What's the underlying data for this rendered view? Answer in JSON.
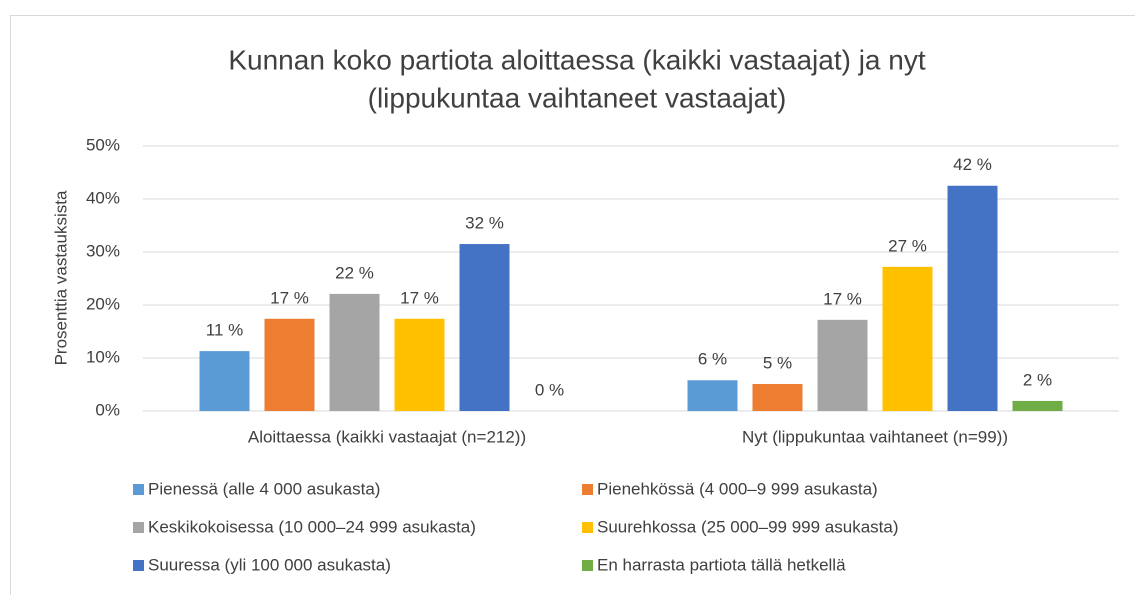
{
  "chart_data": {
    "type": "bar",
    "title": [
      "Kunnan koko partiota aloittaessa (kaikki vastaajat) ja nyt",
      "(lippukuntaa vaihtaneet vastaajat)"
    ],
    "y_label": "Prosenttia vastauksista",
    "categories": [
      "Aloittaessa (kaikki vastaajat (n=212))",
      "Nyt (lippukuntaa vaihtaneet (n=99))"
    ],
    "series": [
      {
        "name": "Pienessä (alle 4 000 asukasta)",
        "color": "#5b9bd5",
        "values": [
          11.3,
          5.8
        ],
        "value_labels": [
          "11 %",
          "6 %"
        ]
      },
      {
        "name": "Pienehkössä (4 000–9 999 asukasta)",
        "color": "#ed7d31",
        "values": [
          17.4,
          5.1
        ],
        "value_labels": [
          "17 %",
          "5 %"
        ]
      },
      {
        "name": "Keskikokoisessa (10 000–24 999 asukasta)",
        "color": "#a5a5a5",
        "values": [
          22.1,
          17.2
        ],
        "value_labels": [
          "22 %",
          "17 %"
        ]
      },
      {
        "name": "Suurehkossa (25 000–99 999 asukasta)",
        "color": "#ffc000",
        "values": [
          17.4,
          27.2
        ],
        "value_labels": [
          "17 %",
          "27 %"
        ]
      },
      {
        "name": "Suuressa (yli 100 000 asukasta)",
        "color": "#4472c4",
        "values": [
          31.5,
          42.5
        ],
        "value_labels": [
          "32 %",
          "42 %"
        ]
      },
      {
        "name": "En harrasta partiota tällä hetkellä",
        "color": "#70ad47",
        "values": [
          0,
          1.9
        ],
        "value_labels": [
          "0 %",
          "2 %"
        ]
      }
    ],
    "ylim": [
      0,
      50
    ],
    "yticks": [
      {
        "value": 0,
        "label": "0%"
      },
      {
        "value": 10,
        "label": "10%"
      },
      {
        "value": 20,
        "label": "20%"
      },
      {
        "value": 30,
        "label": "30%"
      },
      {
        "value": 40,
        "label": "40%"
      },
      {
        "value": 50,
        "label": "50%"
      }
    ],
    "grid": true,
    "legend": "bottom"
  }
}
